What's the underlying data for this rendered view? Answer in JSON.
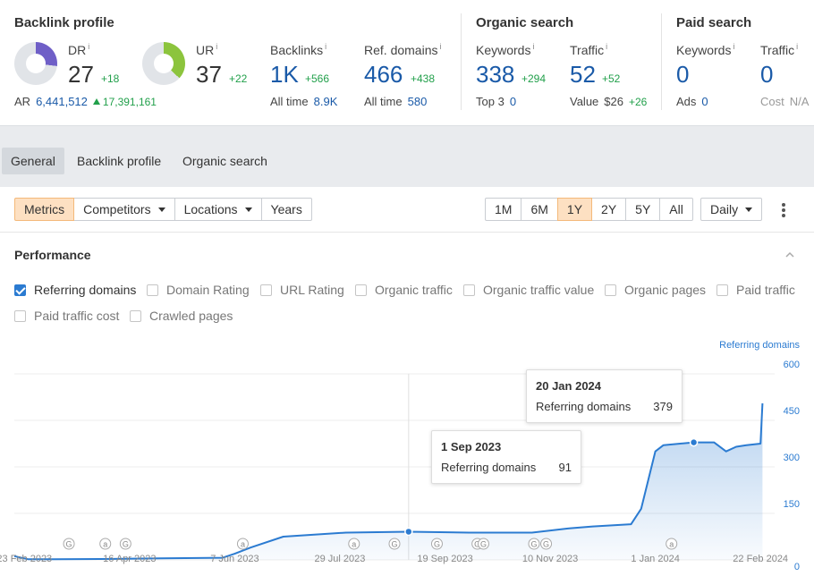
{
  "backlink_profile": {
    "title": "Backlink profile",
    "dr": {
      "label": "DR",
      "info": "i",
      "value": "27",
      "delta": "+18",
      "fill_fraction": 0.27,
      "color": "#6f5fc7"
    },
    "ur": {
      "label": "UR",
      "info": "i",
      "value": "37",
      "delta": "+22",
      "fill_fraction": 0.37,
      "color": "#8cc43d"
    },
    "ar": {
      "label": "AR",
      "value": "6,441,512",
      "change": "17,391,161"
    },
    "backlinks": {
      "label": "Backlinks",
      "info": "i",
      "value": "1K",
      "delta": "+566",
      "sub_label": "All time",
      "sub_value": "8.9K"
    },
    "ref_domains": {
      "label": "Ref. domains",
      "info": "i",
      "value": "466",
      "delta": "+438",
      "sub_label": "All time",
      "sub_value": "580"
    }
  },
  "organic_search": {
    "title": "Organic search",
    "keywords": {
      "label": "Keywords",
      "info": "i",
      "value": "338",
      "delta": "+294",
      "sub_label": "Top 3",
      "sub_value": "0"
    },
    "traffic": {
      "label": "Traffic",
      "info": "i",
      "value": "52",
      "delta": "+52",
      "sub_label": "Value",
      "sub_value": "$26",
      "sub_delta": "+26"
    }
  },
  "paid_search": {
    "title": "Paid search",
    "keywords": {
      "label": "Keywords",
      "info": "i",
      "value": "0",
      "sub_label": "Ads",
      "sub_value": "0"
    },
    "traffic": {
      "label": "Traffic",
      "info": "i",
      "value": "0",
      "sub_label": "Cost",
      "sub_value": "N/A"
    }
  },
  "tabs": [
    "General",
    "Backlink profile",
    "Organic search"
  ],
  "active_tab": "General",
  "controls": {
    "view_buttons": [
      "Metrics",
      "Competitors",
      "Locations",
      "Years"
    ],
    "active_view": "Metrics",
    "ranges": [
      "1M",
      "6M",
      "1Y",
      "2Y",
      "5Y",
      "All"
    ],
    "active_range": "1Y",
    "granularity": "Daily"
  },
  "performance": {
    "title": "Performance",
    "checkboxes": [
      {
        "label": "Referring domains",
        "checked": true
      },
      {
        "label": "Domain Rating",
        "checked": false
      },
      {
        "label": "URL Rating",
        "checked": false
      },
      {
        "label": "Organic traffic",
        "checked": false
      },
      {
        "label": "Organic traffic value",
        "checked": false
      },
      {
        "label": "Organic pages",
        "checked": false
      },
      {
        "label": "Paid traffic",
        "checked": false
      },
      {
        "label": "Paid traffic cost",
        "checked": false
      },
      {
        "label": "Crawled pages",
        "checked": false
      }
    ]
  },
  "chart_data": {
    "type": "area",
    "series": [
      {
        "name": "Referring domains",
        "color": "#2b7bd1",
        "x": [
          "2023-02-18",
          "2023-02-25",
          "2023-03-10",
          "2023-04-01",
          "2023-05-01",
          "2023-06-01",
          "2023-06-07",
          "2023-06-15",
          "2023-07-01",
          "2023-08-01",
          "2023-09-01",
          "2023-10-01",
          "2023-11-01",
          "2023-11-20",
          "2023-12-01",
          "2023-12-20",
          "2023-12-25",
          "2024-01-01",
          "2024-01-05",
          "2024-01-20",
          "2024-01-30",
          "2024-02-05",
          "2024-02-10",
          "2024-02-15",
          "2024-02-22",
          "2024-02-23"
        ],
        "y": [
          12,
          2,
          2,
          3,
          5,
          7,
          20,
          40,
          75,
          88,
          91,
          88,
          88,
          102,
          108,
          115,
          165,
          350,
          370,
          379,
          379,
          350,
          365,
          370,
          375,
          505
        ]
      }
    ],
    "highlight_points": [
      {
        "date_label": "1 Sep 2023",
        "series": "Referring domains",
        "value": "91",
        "x": "2023-09-01",
        "y": 91
      },
      {
        "date_label": "20 Jan 2024",
        "series": "Referring domains",
        "value": "379",
        "x": "2024-01-20",
        "y": 379
      }
    ],
    "x_ticks": [
      "23 Feb 2023",
      "16 Apr 2023",
      "7 Jun 2023",
      "29 Jul 2023",
      "19 Sep 2023",
      "10 Nov 2023",
      "1 Jan 2024",
      "22 Feb 2024"
    ],
    "x_tick_dates": [
      "2023-02-23",
      "2023-04-16",
      "2023-06-07",
      "2023-07-29",
      "2023-09-19",
      "2023-11-10",
      "2024-01-01",
      "2024-02-22"
    ],
    "y_ticks": [
      "600",
      "450",
      "300",
      "150",
      "0"
    ],
    "ylim": [
      0,
      600
    ],
    "xlim": [
      "2023-02-18",
      "2024-02-29"
    ],
    "axis_label": "Referring domains",
    "grid": true,
    "event_markers": [
      {
        "date": "2023-03-17",
        "letter": "G"
      },
      {
        "date": "2023-04-04",
        "letter": "a"
      },
      {
        "date": "2023-04-14",
        "letter": "G"
      },
      {
        "date": "2023-06-11",
        "letter": "a"
      },
      {
        "date": "2023-08-05",
        "letter": "a"
      },
      {
        "date": "2023-08-25",
        "letter": "G"
      },
      {
        "date": "2023-09-15",
        "letter": "G"
      },
      {
        "date": "2023-10-05",
        "letter": "G"
      },
      {
        "date": "2023-10-08",
        "letter": "G"
      },
      {
        "date": "2023-11-02",
        "letter": "G"
      },
      {
        "date": "2023-11-08",
        "letter": "G"
      },
      {
        "date": "2024-01-09",
        "letter": "a"
      }
    ]
  }
}
